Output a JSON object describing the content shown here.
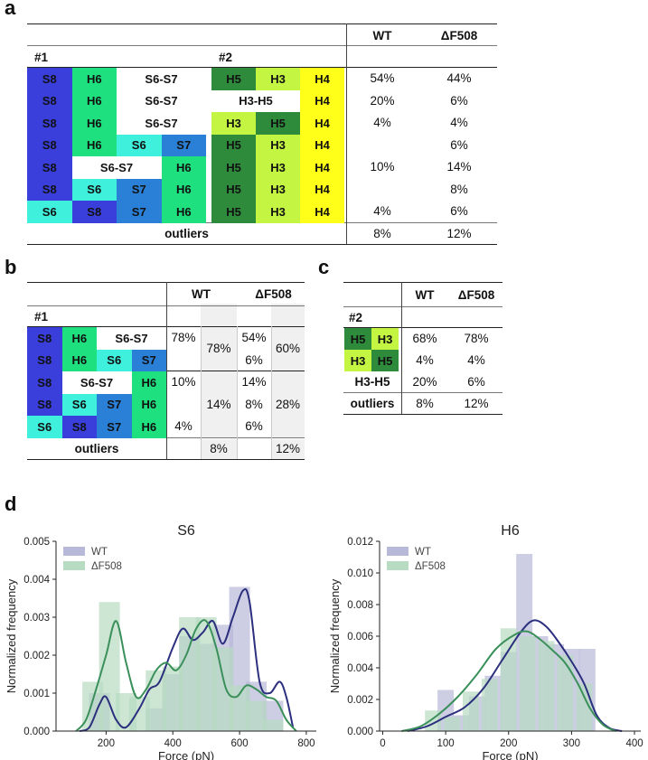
{
  "panels": {
    "a": "a",
    "b": "b",
    "c": "c",
    "d": "d"
  },
  "colors": {
    "S8": "#3a3fdc",
    "H6": "#1fe07f",
    "S6": "#3ff0dc",
    "S7": "#2a7fd6",
    "S6S7": "#ffffff",
    "H5": "#2e8b3c",
    "H3": "#c4f542",
    "H4": "#ffff1a",
    "H3H5": "#ffffff",
    "WT": "#2b2f7e",
    "dF508": "#3a8f5a",
    "WT_bar": "#b8b8d8",
    "dF508_bar": "#b8dcc2"
  },
  "table_a": {
    "col_wt": "WT",
    "col_df": "ΔF508",
    "sub1": "#1",
    "sub2": "#2",
    "rows": [
      {
        "g1": [
          [
            "S8",
            "S8"
          ],
          [
            "H6",
            "H6"
          ],
          [
            "S6-S7",
            "S6S7",
            2
          ]
        ],
        "g2": [
          [
            "H5",
            "H5"
          ],
          [
            "H3",
            "H3"
          ],
          [
            "H4",
            "H4"
          ]
        ],
        "wt": "54%",
        "df": "44%"
      },
      {
        "g1": [
          [
            "S8",
            "S8"
          ],
          [
            "H6",
            "H6"
          ],
          [
            "S6-S7",
            "S6S7",
            2
          ]
        ],
        "g2": [
          [
            "H3-H5",
            "H3H5",
            2
          ],
          [
            "H4",
            "H4"
          ]
        ],
        "wt": "20%",
        "df": "6%"
      },
      {
        "g1": [
          [
            "S8",
            "S8"
          ],
          [
            "H6",
            "H6"
          ],
          [
            "S6-S7",
            "S6S7",
            2
          ]
        ],
        "g2": [
          [
            "H3",
            "H3"
          ],
          [
            "H5",
            "H5"
          ],
          [
            "H4",
            "H4"
          ]
        ],
        "wt": "4%",
        "df": "4%"
      },
      {
        "g1": [
          [
            "S8",
            "S8"
          ],
          [
            "H6",
            "H6"
          ],
          [
            "S6",
            "S6"
          ],
          [
            "S7",
            "S7"
          ]
        ],
        "g2": [
          [
            "H5",
            "H5"
          ],
          [
            "H3",
            "H3"
          ],
          [
            "H4",
            "H4"
          ]
        ],
        "wt": "",
        "df": "6%"
      },
      {
        "g1": [
          [
            "S8",
            "S8"
          ],
          [
            "S6-S7",
            "S6S7",
            2
          ],
          [
            "H6",
            "H6"
          ]
        ],
        "g2": [
          [
            "H5",
            "H5"
          ],
          [
            "H3",
            "H3"
          ],
          [
            "H4",
            "H4"
          ]
        ],
        "wt": "10%",
        "df": "14%"
      },
      {
        "g1": [
          [
            "S8",
            "S8"
          ],
          [
            "S6",
            "S6"
          ],
          [
            "S7",
            "S7"
          ],
          [
            "H6",
            "H6"
          ]
        ],
        "g2": [
          [
            "H5",
            "H5"
          ],
          [
            "H3",
            "H3"
          ],
          [
            "H4",
            "H4"
          ]
        ],
        "wt": "",
        "df": "8%"
      },
      {
        "g1": [
          [
            "S6",
            "S6"
          ],
          [
            "S8",
            "S8"
          ],
          [
            "S7",
            "S7"
          ],
          [
            "H6",
            "H6"
          ]
        ],
        "g2": [
          [
            "H5",
            "H5"
          ],
          [
            "H3",
            "H3"
          ],
          [
            "H4",
            "H4"
          ]
        ],
        "wt": "4%",
        "df": "6%"
      }
    ],
    "outliers_label": "outliers",
    "outliers_wt": "8%",
    "outliers_df": "12%"
  },
  "table_b": {
    "col_wt": "WT",
    "col_df": "ΔF508",
    "sub1": "#1",
    "rows": [
      [
        [
          "S8",
          "S8"
        ],
        [
          "H6",
          "H6"
        ],
        [
          "S6-S7",
          "S6S7",
          2
        ]
      ],
      [
        [
          "S8",
          "S8"
        ],
        [
          "H6",
          "H6"
        ],
        [
          "S6",
          "S6"
        ],
        [
          "S7",
          "S7"
        ]
      ],
      [
        [
          "S8",
          "S8"
        ],
        [
          "S6-S7",
          "S6S7",
          2
        ],
        [
          "H6",
          "H6"
        ]
      ],
      [
        [
          "S8",
          "S8"
        ],
        [
          "S6",
          "S6"
        ],
        [
          "S7",
          "S7"
        ],
        [
          "H6",
          "H6"
        ]
      ],
      [
        [
          "S6",
          "S6"
        ],
        [
          "S8",
          "S8"
        ],
        [
          "S7",
          "S7"
        ],
        [
          "H6",
          "H6"
        ]
      ]
    ],
    "wt_rows": [
      "78%",
      "",
      "10%",
      "",
      "4%"
    ],
    "wt_group1": "78%",
    "wt_group2": "14%",
    "df_rows": [
      "54%",
      "6%",
      "14%",
      "8%",
      "6%"
    ],
    "df_group1": "60%",
    "df_group2": "28%",
    "outliers_label": "outliers",
    "outliers_wt": "8%",
    "outliers_df": "12%"
  },
  "table_c": {
    "col_wt": "WT",
    "col_df": "ΔF508",
    "sub2": "#2",
    "rows": [
      {
        "cells": [
          [
            "H5",
            "H5"
          ],
          [
            "H3",
            "H3"
          ]
        ],
        "wt": "68%",
        "df": "78%"
      },
      {
        "cells": [
          [
            "H3",
            "H3"
          ],
          [
            "H5",
            "H5"
          ]
        ],
        "wt": "4%",
        "df": "4%"
      },
      {
        "label": "H3-H5",
        "wt": "20%",
        "df": "6%"
      }
    ],
    "outliers_label": "outliers",
    "outliers_wt": "8%",
    "outliers_df": "12%"
  },
  "chart_data": [
    {
      "type": "histogram+kde",
      "title": "S6",
      "xlabel": "Force (pN)",
      "ylabel": "Normalized frequency",
      "xlim": [
        50,
        830
      ],
      "ylim": [
        0,
        0.005
      ],
      "xticks": [
        200,
        400,
        600,
        800
      ],
      "yticks": [
        0.0,
        0.001,
        0.002,
        0.003,
        0.004,
        0.005
      ],
      "ytick_labels": [
        "0.000",
        "0.001",
        "0.002",
        "0.003",
        "0.004",
        "0.005"
      ],
      "legend": [
        "WT",
        "ΔF508"
      ],
      "legend_position": "top-left",
      "series": [
        {
          "name": "WT",
          "kind": "hist",
          "x": [
            180,
            240,
            300,
            350,
            400,
            450,
            500,
            550,
            600,
            650,
            700
          ],
          "values": [
            0.001,
            0,
            0,
            0.0006,
            0.0015,
            0.0025,
            0.0023,
            0.0028,
            0.0038,
            0.0013,
            0.0008
          ]
        },
        {
          "name": "ΔF508",
          "kind": "hist",
          "x": [
            160,
            210,
            260,
            300,
            350,
            400,
            450,
            500,
            550,
            600,
            650,
            700
          ],
          "values": [
            0.0013,
            0.0034,
            0.001,
            0.0009,
            0.0016,
            0.0017,
            0.003,
            0.003,
            0.0022,
            0.0012,
            0.0008,
            0.0003
          ]
        },
        {
          "name": "WT",
          "kind": "kde",
          "x": [
            120,
            150,
            180,
            200,
            230,
            260,
            300,
            330,
            360,
            400,
            430,
            460,
            490,
            520,
            550,
            580,
            610,
            630,
            660,
            690,
            720,
            740,
            760
          ],
          "values": [
            0,
            0.0001,
            0.0007,
            0.0009,
            0.0003,
            0.0001,
            0.0006,
            0.0011,
            0.0013,
            0.0022,
            0.0027,
            0.0024,
            0.0026,
            0.0029,
            0.0023,
            0.003,
            0.0037,
            0.0034,
            0.0013,
            0.001,
            0.0013,
            0.0009,
            0.0001
          ]
        },
        {
          "name": "ΔF508",
          "kind": "kde",
          "x": [
            110,
            140,
            170,
            200,
            230,
            260,
            290,
            320,
            350,
            380,
            410,
            440,
            470,
            500,
            530,
            560,
            590,
            620,
            650,
            680,
            710,
            740,
            770
          ],
          "values": [
            0,
            0.0003,
            0.0011,
            0.002,
            0.0029,
            0.0018,
            0.0009,
            0.0011,
            0.0016,
            0.0018,
            0.0016,
            0.002,
            0.0027,
            0.0029,
            0.0022,
            0.0011,
            0.0009,
            0.0012,
            0.0011,
            0.0009,
            0.0008,
            0.0003,
            0
          ]
        }
      ]
    },
    {
      "type": "histogram+kde",
      "title": "H6",
      "xlabel": "Force (pN)",
      "ylabel": "Normalized frequency",
      "xlim": [
        -5,
        410
      ],
      "ylim": [
        0,
        0.012
      ],
      "xticks": [
        0,
        100,
        200,
        300,
        400
      ],
      "yticks": [
        0.0,
        0.002,
        0.004,
        0.006,
        0.008,
        0.01,
        0.012
      ],
      "ytick_labels": [
        "0.000",
        "0.002",
        "0.004",
        "0.006",
        "0.008",
        "0.010",
        "0.012"
      ],
      "legend": [
        "WT",
        "ΔF508"
      ],
      "legend_position": "top-left",
      "series": [
        {
          "name": "WT",
          "kind": "hist",
          "x": [
            100,
            125,
            150,
            175,
            200,
            225,
            250,
            275,
            300,
            325
          ],
          "values": [
            0.0026,
            0.001,
            0.0022,
            0.0035,
            0.005,
            0.0112,
            0.006,
            0.0055,
            0.0052,
            0.0052
          ]
        },
        {
          "name": "ΔF508",
          "kind": "hist",
          "x": [
            80,
            110,
            140,
            170,
            200,
            230,
            260,
            290,
            320
          ],
          "values": [
            0.0013,
            0.0009,
            0.0025,
            0.0033,
            0.0065,
            0.006,
            0.0057,
            0.0048,
            0.003
          ]
        },
        {
          "name": "WT",
          "kind": "kde",
          "x": [
            40,
            70,
            100,
            130,
            160,
            190,
            220,
            240,
            260,
            280,
            300,
            320,
            340,
            360,
            380
          ],
          "values": [
            0,
            0.0003,
            0.0009,
            0.0015,
            0.0027,
            0.0045,
            0.0063,
            0.007,
            0.0066,
            0.0056,
            0.0044,
            0.003,
            0.001,
            0.0002,
            0
          ]
        },
        {
          "name": "ΔF508",
          "kind": "kde",
          "x": [
            30,
            60,
            90,
            120,
            150,
            180,
            210,
            230,
            250,
            270,
            290,
            310,
            330,
            350,
            370
          ],
          "values": [
            0,
            0.0003,
            0.0011,
            0.0022,
            0.0036,
            0.0052,
            0.0061,
            0.0063,
            0.0058,
            0.0051,
            0.0043,
            0.003,
            0.0014,
            0.0004,
            0
          ]
        }
      ]
    }
  ]
}
